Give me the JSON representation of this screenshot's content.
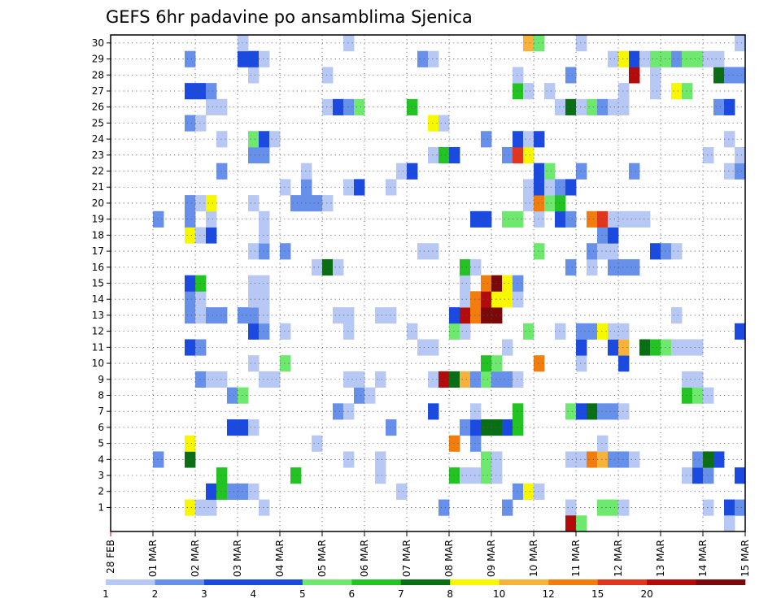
{
  "chart_data": {
    "type": "heatmap",
    "title": "GEFS 6hr padavine po ansamblima Sjenica",
    "x_ticks": [
      "28 FEB",
      "01 MAR",
      "02 MAR",
      "03 MAR",
      "04 MAR",
      "05 MAR",
      "06 MAR",
      "07 MAR",
      "08 MAR",
      "09 MAR",
      "10 MAR",
      "11 MAR",
      "12 MAR",
      "13 MAR",
      "14 MAR",
      "15 MAR"
    ],
    "y_ticks": [
      "1",
      "2",
      "3",
      "4",
      "5",
      "6",
      "7",
      "8",
      "9",
      "10",
      "11",
      "12",
      "13",
      "14",
      "15",
      "16",
      "17",
      "18",
      "19",
      "20",
      "21",
      "22",
      "23",
      "24",
      "25",
      "26",
      "27",
      "28",
      "29",
      "30"
    ],
    "xlim": [
      0,
      60
    ],
    "ylim": [
      0,
      30
    ],
    "grid": true,
    "colorbar": {
      "labels": [
        "1",
        "2",
        "3",
        "4",
        "5",
        "6",
        "7",
        "8",
        "10",
        "12",
        "15",
        "20"
      ],
      "colors": [
        "#b8c8f4",
        "#6690ea",
        "#1a4ae0",
        "#1a4ae0",
        "#6ee86e",
        "#22c322",
        "#0a6e14",
        "#f7f700",
        "#f7b23c",
        "#f27d0f",
        "#e0361e",
        "#b30a0a",
        "#7a0a0a"
      ]
    },
    "cells_note": "each cell: [time_step(6h since 28 FEB 00Z), member, color_index]",
    "cells": [
      [
        7,
        1,
        7
      ],
      [
        8,
        1,
        0
      ],
      [
        9,
        1,
        0
      ],
      [
        14,
        1,
        0
      ],
      [
        31,
        1,
        1
      ],
      [
        37,
        1,
        1
      ],
      [
        43,
        1,
        0
      ],
      [
        46,
        1,
        4
      ],
      [
        47,
        1,
        4
      ],
      [
        48,
        1,
        0
      ],
      [
        56,
        1,
        0
      ],
      [
        58,
        1,
        2
      ],
      [
        59,
        1,
        1
      ],
      [
        9,
        2,
        2
      ],
      [
        10,
        2,
        5
      ],
      [
        11,
        2,
        1
      ],
      [
        12,
        2,
        1
      ],
      [
        13,
        2,
        0
      ],
      [
        27,
        2,
        0
      ],
      [
        38,
        2,
        1
      ],
      [
        39,
        2,
        7
      ],
      [
        40,
        2,
        0
      ],
      [
        10,
        3,
        5
      ],
      [
        17,
        3,
        5
      ],
      [
        25,
        3,
        0
      ],
      [
        32,
        3,
        5
      ],
      [
        33,
        3,
        0
      ],
      [
        34,
        3,
        0
      ],
      [
        35,
        3,
        4
      ],
      [
        36,
        3,
        0
      ],
      [
        54,
        3,
        0
      ],
      [
        55,
        3,
        2
      ],
      [
        56,
        3,
        1
      ],
      [
        59,
        3,
        2
      ],
      [
        4,
        4,
        1
      ],
      [
        7,
        4,
        6
      ],
      [
        22,
        4,
        0
      ],
      [
        25,
        4,
        0
      ],
      [
        35,
        4,
        4
      ],
      [
        36,
        4,
        0
      ],
      [
        43,
        4,
        0
      ],
      [
        44,
        4,
        0
      ],
      [
        45,
        4,
        9
      ],
      [
        46,
        4,
        8
      ],
      [
        47,
        4,
        1
      ],
      [
        48,
        4,
        1
      ],
      [
        49,
        4,
        0
      ],
      [
        55,
        4,
        1
      ],
      [
        56,
        4,
        6
      ],
      [
        57,
        4,
        2
      ],
      [
        7,
        5,
        7
      ],
      [
        19,
        5,
        0
      ],
      [
        32,
        5,
        9
      ],
      [
        34,
        5,
        1
      ],
      [
        46,
        5,
        0
      ],
      [
        11,
        6,
        2
      ],
      [
        12,
        6,
        2
      ],
      [
        13,
        6,
        0
      ],
      [
        26,
        6,
        1
      ],
      [
        33,
        6,
        1
      ],
      [
        34,
        6,
        2
      ],
      [
        35,
        6,
        6
      ],
      [
        36,
        6,
        6
      ],
      [
        37,
        6,
        2
      ],
      [
        38,
        6,
        5
      ],
      [
        21,
        7,
        1
      ],
      [
        22,
        7,
        0
      ],
      [
        30,
        7,
        2
      ],
      [
        34,
        7,
        0
      ],
      [
        38,
        7,
        5
      ],
      [
        43,
        7,
        4
      ],
      [
        44,
        7,
        2
      ],
      [
        45,
        7,
        6
      ],
      [
        46,
        7,
        1
      ],
      [
        47,
        7,
        1
      ],
      [
        48,
        7,
        0
      ],
      [
        11,
        8,
        1
      ],
      [
        12,
        8,
        4
      ],
      [
        23,
        8,
        1
      ],
      [
        24,
        8,
        0
      ],
      [
        54,
        8,
        5
      ],
      [
        55,
        8,
        4
      ],
      [
        56,
        8,
        0
      ],
      [
        8,
        9,
        1
      ],
      [
        9,
        9,
        0
      ],
      [
        10,
        9,
        0
      ],
      [
        14,
        9,
        0
      ],
      [
        15,
        9,
        0
      ],
      [
        22,
        9,
        0
      ],
      [
        23,
        9,
        0
      ],
      [
        25,
        9,
        0
      ],
      [
        30,
        9,
        0
      ],
      [
        31,
        9,
        11
      ],
      [
        32,
        9,
        6
      ],
      [
        33,
        9,
        8
      ],
      [
        34,
        9,
        1
      ],
      [
        35,
        9,
        4
      ],
      [
        36,
        9,
        1
      ],
      [
        37,
        9,
        1
      ],
      [
        38,
        9,
        0
      ],
      [
        54,
        9,
        0
      ],
      [
        55,
        9,
        0
      ],
      [
        13,
        10,
        0
      ],
      [
        16,
        10,
        4
      ],
      [
        35,
        10,
        5
      ],
      [
        36,
        10,
        4
      ],
      [
        40,
        10,
        9
      ],
      [
        44,
        10,
        0
      ],
      [
        48,
        10,
        2
      ],
      [
        7,
        11,
        2
      ],
      [
        8,
        11,
        1
      ],
      [
        29,
        11,
        0
      ],
      [
        30,
        11,
        0
      ],
      [
        37,
        11,
        0
      ],
      [
        44,
        11,
        2
      ],
      [
        47,
        11,
        2
      ],
      [
        48,
        11,
        8
      ],
      [
        50,
        11,
        6
      ],
      [
        51,
        11,
        5
      ],
      [
        52,
        11,
        4
      ],
      [
        53,
        11,
        0
      ],
      [
        54,
        11,
        0
      ],
      [
        55,
        11,
        0
      ],
      [
        13,
        12,
        2
      ],
      [
        14,
        12,
        1
      ],
      [
        16,
        12,
        0
      ],
      [
        22,
        12,
        0
      ],
      [
        28,
        12,
        0
      ],
      [
        32,
        12,
        4
      ],
      [
        33,
        12,
        0
      ],
      [
        39,
        12,
        4
      ],
      [
        42,
        12,
        0
      ],
      [
        44,
        12,
        1
      ],
      [
        45,
        12,
        1
      ],
      [
        46,
        12,
        7
      ],
      [
        47,
        12,
        0
      ],
      [
        48,
        12,
        0
      ],
      [
        59,
        12,
        2
      ],
      [
        7,
        13,
        1
      ],
      [
        8,
        13,
        0
      ],
      [
        9,
        13,
        1
      ],
      [
        10,
        13,
        1
      ],
      [
        12,
        13,
        1
      ],
      [
        13,
        13,
        1
      ],
      [
        14,
        13,
        0
      ],
      [
        21,
        13,
        0
      ],
      [
        22,
        13,
        0
      ],
      [
        25,
        13,
        0
      ],
      [
        26,
        13,
        0
      ],
      [
        32,
        13,
        2
      ],
      [
        33,
        13,
        11
      ],
      [
        34,
        13,
        9
      ],
      [
        35,
        13,
        12
      ],
      [
        36,
        13,
        12
      ],
      [
        53,
        13,
        0
      ],
      [
        7,
        14,
        1
      ],
      [
        8,
        14,
        0
      ],
      [
        13,
        14,
        0
      ],
      [
        14,
        14,
        0
      ],
      [
        33,
        14,
        0
      ],
      [
        34,
        14,
        9
      ],
      [
        35,
        14,
        11
      ],
      [
        36,
        14,
        7
      ],
      [
        37,
        14,
        7
      ],
      [
        38,
        14,
        0
      ],
      [
        7,
        15,
        2
      ],
      [
        8,
        15,
        5
      ],
      [
        13,
        15,
        0
      ],
      [
        14,
        15,
        0
      ],
      [
        33,
        15,
        0
      ],
      [
        35,
        15,
        9
      ],
      [
        36,
        15,
        12
      ],
      [
        37,
        15,
        7
      ],
      [
        38,
        15,
        1
      ],
      [
        19,
        16,
        0
      ],
      [
        20,
        16,
        6
      ],
      [
        21,
        16,
        0
      ],
      [
        33,
        16,
        5
      ],
      [
        34,
        16,
        0
      ],
      [
        43,
        16,
        1
      ],
      [
        45,
        16,
        0
      ],
      [
        47,
        16,
        1
      ],
      [
        48,
        16,
        1
      ],
      [
        49,
        16,
        1
      ],
      [
        13,
        17,
        0
      ],
      [
        14,
        17,
        1
      ],
      [
        16,
        17,
        1
      ],
      [
        29,
        17,
        0
      ],
      [
        30,
        17,
        0
      ],
      [
        40,
        17,
        4
      ],
      [
        45,
        17,
        1
      ],
      [
        46,
        17,
        0
      ],
      [
        47,
        17,
        0
      ],
      [
        51,
        17,
        2
      ],
      [
        52,
        17,
        1
      ],
      [
        53,
        17,
        0
      ],
      [
        7,
        18,
        7
      ],
      [
        8,
        18,
        0
      ],
      [
        9,
        18,
        2
      ],
      [
        14,
        18,
        0
      ],
      [
        46,
        18,
        1
      ],
      [
        47,
        18,
        2
      ],
      [
        4,
        19,
        1
      ],
      [
        7,
        19,
        1
      ],
      [
        9,
        19,
        0
      ],
      [
        14,
        19,
        0
      ],
      [
        34,
        19,
        2
      ],
      [
        35,
        19,
        2
      ],
      [
        37,
        19,
        4
      ],
      [
        38,
        19,
        4
      ],
      [
        40,
        19,
        0
      ],
      [
        42,
        19,
        2
      ],
      [
        43,
        19,
        1
      ],
      [
        45,
        19,
        9
      ],
      [
        46,
        19,
        10
      ],
      [
        47,
        19,
        0
      ],
      [
        48,
        19,
        0
      ],
      [
        49,
        19,
        0
      ],
      [
        50,
        19,
        0
      ],
      [
        7,
        20,
        1
      ],
      [
        8,
        20,
        0
      ],
      [
        9,
        20,
        7
      ],
      [
        13,
        20,
        0
      ],
      [
        17,
        20,
        1
      ],
      [
        18,
        20,
        1
      ],
      [
        19,
        20,
        1
      ],
      [
        20,
        20,
        0
      ],
      [
        39,
        20,
        0
      ],
      [
        40,
        20,
        9
      ],
      [
        41,
        20,
        4
      ],
      [
        42,
        20,
        5
      ],
      [
        16,
        21,
        0
      ],
      [
        18,
        21,
        1
      ],
      [
        22,
        21,
        0
      ],
      [
        23,
        21,
        2
      ],
      [
        26,
        21,
        0
      ],
      [
        39,
        21,
        0
      ],
      [
        40,
        21,
        2
      ],
      [
        41,
        21,
        0
      ],
      [
        42,
        21,
        1
      ],
      [
        43,
        21,
        2
      ],
      [
        10,
        22,
        1
      ],
      [
        18,
        22,
        0
      ],
      [
        27,
        22,
        0
      ],
      [
        28,
        22,
        2
      ],
      [
        40,
        22,
        2
      ],
      [
        41,
        22,
        4
      ],
      [
        44,
        22,
        1
      ],
      [
        49,
        22,
        1
      ],
      [
        58,
        22,
        0
      ],
      [
        59,
        22,
        1
      ],
      [
        13,
        23,
        1
      ],
      [
        14,
        23,
        1
      ],
      [
        30,
        23,
        0
      ],
      [
        31,
        23,
        5
      ],
      [
        32,
        23,
        2
      ],
      [
        37,
        23,
        1
      ],
      [
        38,
        23,
        10
      ],
      [
        39,
        23,
        7
      ],
      [
        56,
        23,
        0
      ],
      [
        59,
        23,
        0
      ],
      [
        10,
        24,
        0
      ],
      [
        13,
        24,
        4
      ],
      [
        14,
        24,
        2
      ],
      [
        15,
        24,
        0
      ],
      [
        35,
        24,
        1
      ],
      [
        38,
        24,
        2
      ],
      [
        39,
        24,
        0
      ],
      [
        40,
        24,
        2
      ],
      [
        58,
        24,
        0
      ],
      [
        7,
        25,
        1
      ],
      [
        8,
        25,
        0
      ],
      [
        30,
        25,
        7
      ],
      [
        31,
        25,
        0
      ],
      [
        9,
        26,
        0
      ],
      [
        10,
        26,
        0
      ],
      [
        20,
        26,
        0
      ],
      [
        21,
        26,
        2
      ],
      [
        22,
        26,
        1
      ],
      [
        23,
        26,
        4
      ],
      [
        28,
        26,
        5
      ],
      [
        42,
        26,
        0
      ],
      [
        43,
        26,
        6
      ],
      [
        44,
        26,
        0
      ],
      [
        45,
        26,
        4
      ],
      [
        46,
        26,
        1
      ],
      [
        47,
        26,
        0
      ],
      [
        48,
        26,
        0
      ],
      [
        57,
        26,
        1
      ],
      [
        58,
        26,
        2
      ],
      [
        7,
        27,
        2
      ],
      [
        8,
        27,
        2
      ],
      [
        9,
        27,
        1
      ],
      [
        38,
        27,
        5
      ],
      [
        39,
        27,
        0
      ],
      [
        41,
        27,
        0
      ],
      [
        48,
        27,
        0
      ],
      [
        51,
        27,
        0
      ],
      [
        53,
        27,
        7
      ],
      [
        54,
        27,
        4
      ],
      [
        13,
        28,
        0
      ],
      [
        20,
        28,
        0
      ],
      [
        38,
        28,
        0
      ],
      [
        43,
        28,
        1
      ],
      [
        49,
        28,
        11
      ],
      [
        51,
        28,
        0
      ],
      [
        57,
        28,
        6
      ],
      [
        58,
        28,
        1
      ],
      [
        59,
        28,
        1
      ],
      [
        7,
        29,
        1
      ],
      [
        12,
        29,
        2
      ],
      [
        13,
        29,
        2
      ],
      [
        14,
        29,
        0
      ],
      [
        29,
        29,
        1
      ],
      [
        30,
        29,
        0
      ],
      [
        47,
        29,
        0
      ],
      [
        48,
        29,
        7
      ],
      [
        49,
        29,
        2
      ],
      [
        50,
        29,
        0
      ],
      [
        51,
        29,
        4
      ],
      [
        52,
        29,
        4
      ],
      [
        53,
        29,
        1
      ],
      [
        54,
        29,
        4
      ],
      [
        55,
        29,
        4
      ],
      [
        56,
        29,
        0
      ],
      [
        57,
        29,
        0
      ],
      [
        12,
        30,
        0
      ],
      [
        22,
        30,
        0
      ],
      [
        39,
        30,
        8
      ],
      [
        40,
        30,
        4
      ],
      [
        44,
        30,
        0
      ],
      [
        59,
        30,
        0
      ],
      [
        43,
        0,
        11
      ],
      [
        44,
        0,
        4
      ],
      [
        58,
        0,
        0
      ]
    ]
  }
}
